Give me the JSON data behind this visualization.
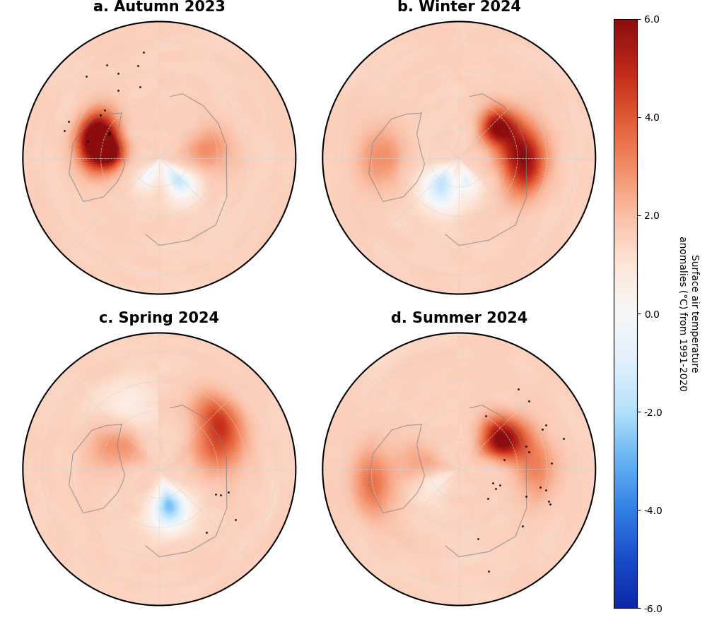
{
  "titles": [
    "a. Autumn 2023",
    "b. Winter 2024",
    "c. Spring 2024",
    "d. Summer 2024"
  ],
  "colorbar_label_line1": "Surface air temperature",
  "colorbar_label_line2": "anomalies (°C) from 1991-2020",
  "vmin": -6.0,
  "vmax": 6.0,
  "colorbar_ticks": [
    -6.0,
    -4.0,
    -2.0,
    0.0,
    2.0,
    4.0,
    6.0
  ],
  "background_color": "#ffffff",
  "title_fontsize": 15,
  "title_fontweight": "bold"
}
